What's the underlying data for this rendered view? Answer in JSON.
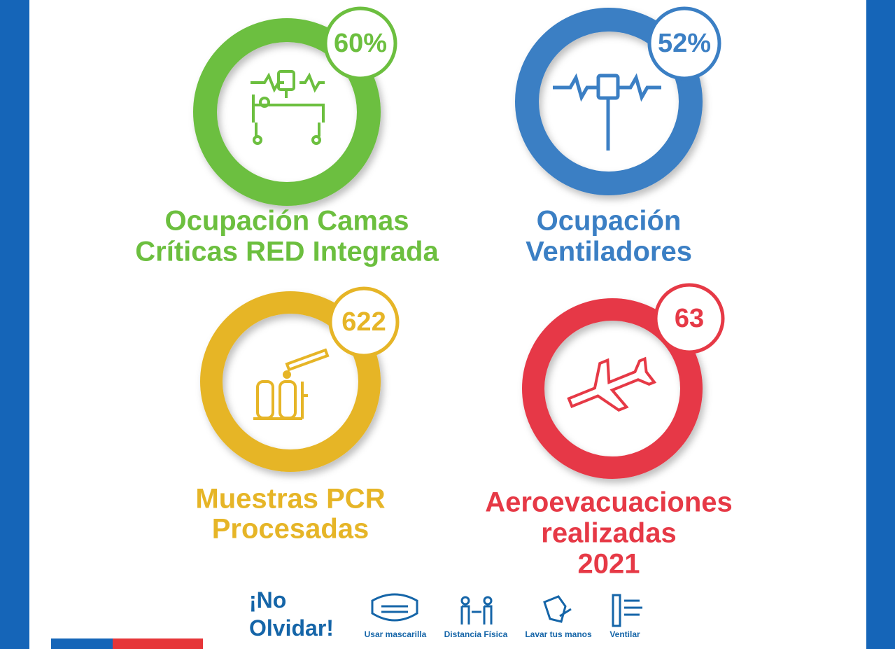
{
  "stats": [
    {
      "value": "60%",
      "label": [
        "Ocupación Camas",
        "Críticas RED Integrada"
      ]
    },
    {
      "value": "52%",
      "label": [
        "Ocupación",
        "Ventiladores"
      ]
    },
    {
      "value": "622",
      "label": [
        "Muestras PCR",
        "Procesadas"
      ]
    },
    {
      "value": "63",
      "label": [
        "Aeroevacuaciones",
        "realizadas",
        "2021"
      ]
    }
  ],
  "footer": {
    "title": [
      "¡No",
      "Olvidar!"
    ],
    "items": [
      "Usar mascarilla",
      "Distancia Física",
      "Lavar tus manos",
      "Ventilar"
    ]
  }
}
